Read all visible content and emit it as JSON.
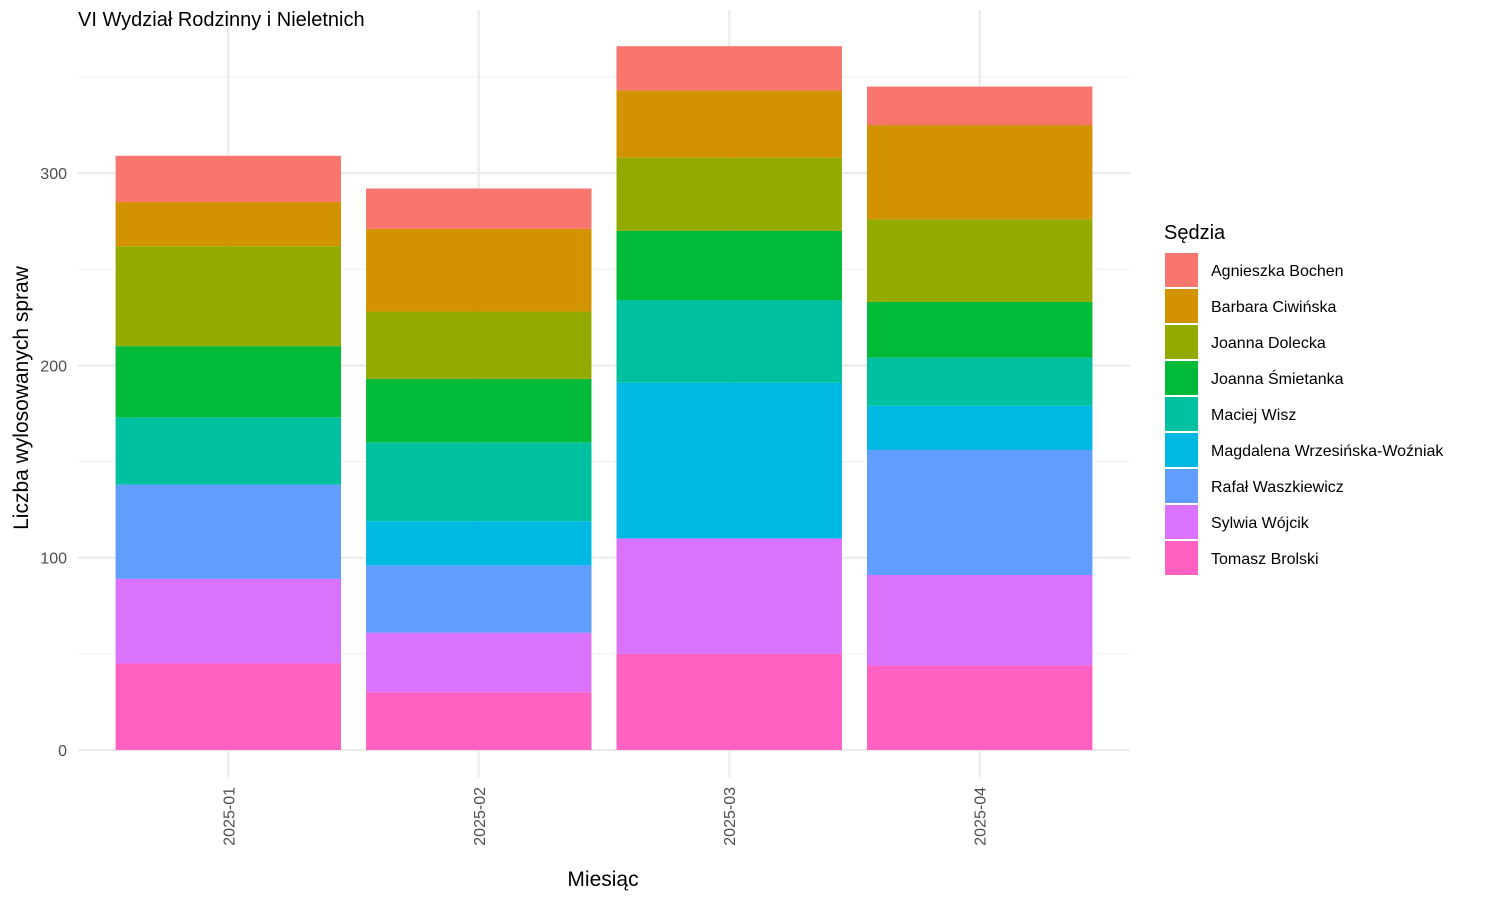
{
  "chart_data": {
    "type": "bar",
    "stacked": true,
    "title": "VI Wydział Rodzinny i Nieletnich",
    "xlabel": "Miesiąc",
    "ylabel": "Liczba wylosowanych spraw",
    "ylim": [
      0,
      380
    ],
    "yticks": [
      0,
      100,
      200,
      300
    ],
    "grid": true,
    "categories": [
      "2025-01",
      "2025-02",
      "2025-03",
      "2025-04"
    ],
    "legend": {
      "title": "Sędzia",
      "position": "right"
    },
    "series": [
      {
        "name": "Tomasz Brolski",
        "color": "#FF61C3",
        "values": [
          45,
          30,
          50,
          44
        ]
      },
      {
        "name": "Sylwia Wójcik",
        "color": "#DB72FB",
        "values": [
          44,
          31,
          60,
          47
        ]
      },
      {
        "name": "Rafał Waszkiewicz",
        "color": "#619CFF",
        "values": [
          49,
          35,
          0,
          65
        ]
      },
      {
        "name": "Magdalena Wrzesińska-Woźniak",
        "color": "#00B9E3",
        "values": [
          0,
          23,
          81,
          23
        ]
      },
      {
        "name": "Maciej Wisz",
        "color": "#00C19F",
        "values": [
          35,
          41,
          43,
          25
        ]
      },
      {
        "name": "Joanna Śmietanka",
        "color": "#00BA38",
        "values": [
          37,
          33,
          36,
          29
        ]
      },
      {
        "name": "Joanna Dolecka",
        "color": "#93AA00",
        "values": [
          52,
          35,
          38,
          43
        ]
      },
      {
        "name": "Barbara Ciwińska",
        "color": "#D39200",
        "values": [
          23,
          43,
          35,
          49
        ]
      },
      {
        "name": "Agnieszka Bochen",
        "color": "#F8766D",
        "values": [
          24,
          21,
          23,
          20
        ]
      }
    ],
    "legend_order": [
      "Agnieszka Bochen",
      "Barbara Ciwińska",
      "Joanna Dolecka",
      "Joanna Śmietanka",
      "Maciej Wisz",
      "Magdalena Wrzesińska-Woźniak",
      "Rafał Waszkiewicz",
      "Sylwia Wójcik",
      "Tomasz Brolski"
    ]
  }
}
